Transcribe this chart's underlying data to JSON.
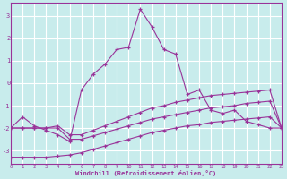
{
  "xlabel": "Windchill (Refroidissement éolien,°C)",
  "background_color": "#c8ecec",
  "grid_color": "#ffffff",
  "line_color": "#993399",
  "x_values": [
    0,
    1,
    2,
    3,
    4,
    5,
    6,
    7,
    8,
    9,
    10,
    11,
    12,
    13,
    14,
    15,
    16,
    17,
    18,
    19,
    20,
    21,
    22,
    23
  ],
  "line1_y": [
    -2.0,
    -1.5,
    -1.9,
    -2.1,
    -2.3,
    -2.6,
    -0.3,
    0.4,
    0.85,
    1.5,
    1.6,
    3.3,
    2.5,
    1.5,
    1.3,
    -0.5,
    -0.3,
    -1.2,
    -1.35,
    -1.2,
    -1.7,
    -1.85,
    -2.0,
    -2.0
  ],
  "line2_y": [
    -2.0,
    -2.0,
    -2.0,
    -2.0,
    -1.9,
    -2.3,
    -2.3,
    -2.1,
    -1.9,
    -1.7,
    -1.5,
    -1.3,
    -1.1,
    -1.0,
    -0.85,
    -0.75,
    -0.65,
    -0.55,
    -0.5,
    -0.45,
    -0.4,
    -0.35,
    -0.3,
    -2.0
  ],
  "line3_y": [
    -2.0,
    -2.0,
    -2.0,
    -2.0,
    -2.0,
    -2.5,
    -2.5,
    -2.35,
    -2.2,
    -2.05,
    -1.9,
    -1.75,
    -1.6,
    -1.5,
    -1.4,
    -1.3,
    -1.2,
    -1.1,
    -1.05,
    -1.0,
    -0.9,
    -0.85,
    -0.8,
    -2.0
  ],
  "line4_y": [
    -3.3,
    -3.3,
    -3.3,
    -3.3,
    -3.25,
    -3.2,
    -3.1,
    -2.95,
    -2.8,
    -2.65,
    -2.5,
    -2.35,
    -2.2,
    -2.1,
    -2.0,
    -1.9,
    -1.85,
    -1.75,
    -1.7,
    -1.65,
    -1.6,
    -1.55,
    -1.5,
    -2.0
  ],
  "ylim": [
    -3.6,
    3.6
  ],
  "xlim": [
    0,
    23
  ],
  "yticks": [
    -3,
    -2,
    -1,
    0,
    1,
    2,
    3
  ],
  "xticks": [
    0,
    1,
    2,
    3,
    4,
    5,
    6,
    7,
    8,
    9,
    10,
    11,
    12,
    13,
    14,
    15,
    16,
    17,
    18,
    19,
    20,
    21,
    22,
    23
  ]
}
